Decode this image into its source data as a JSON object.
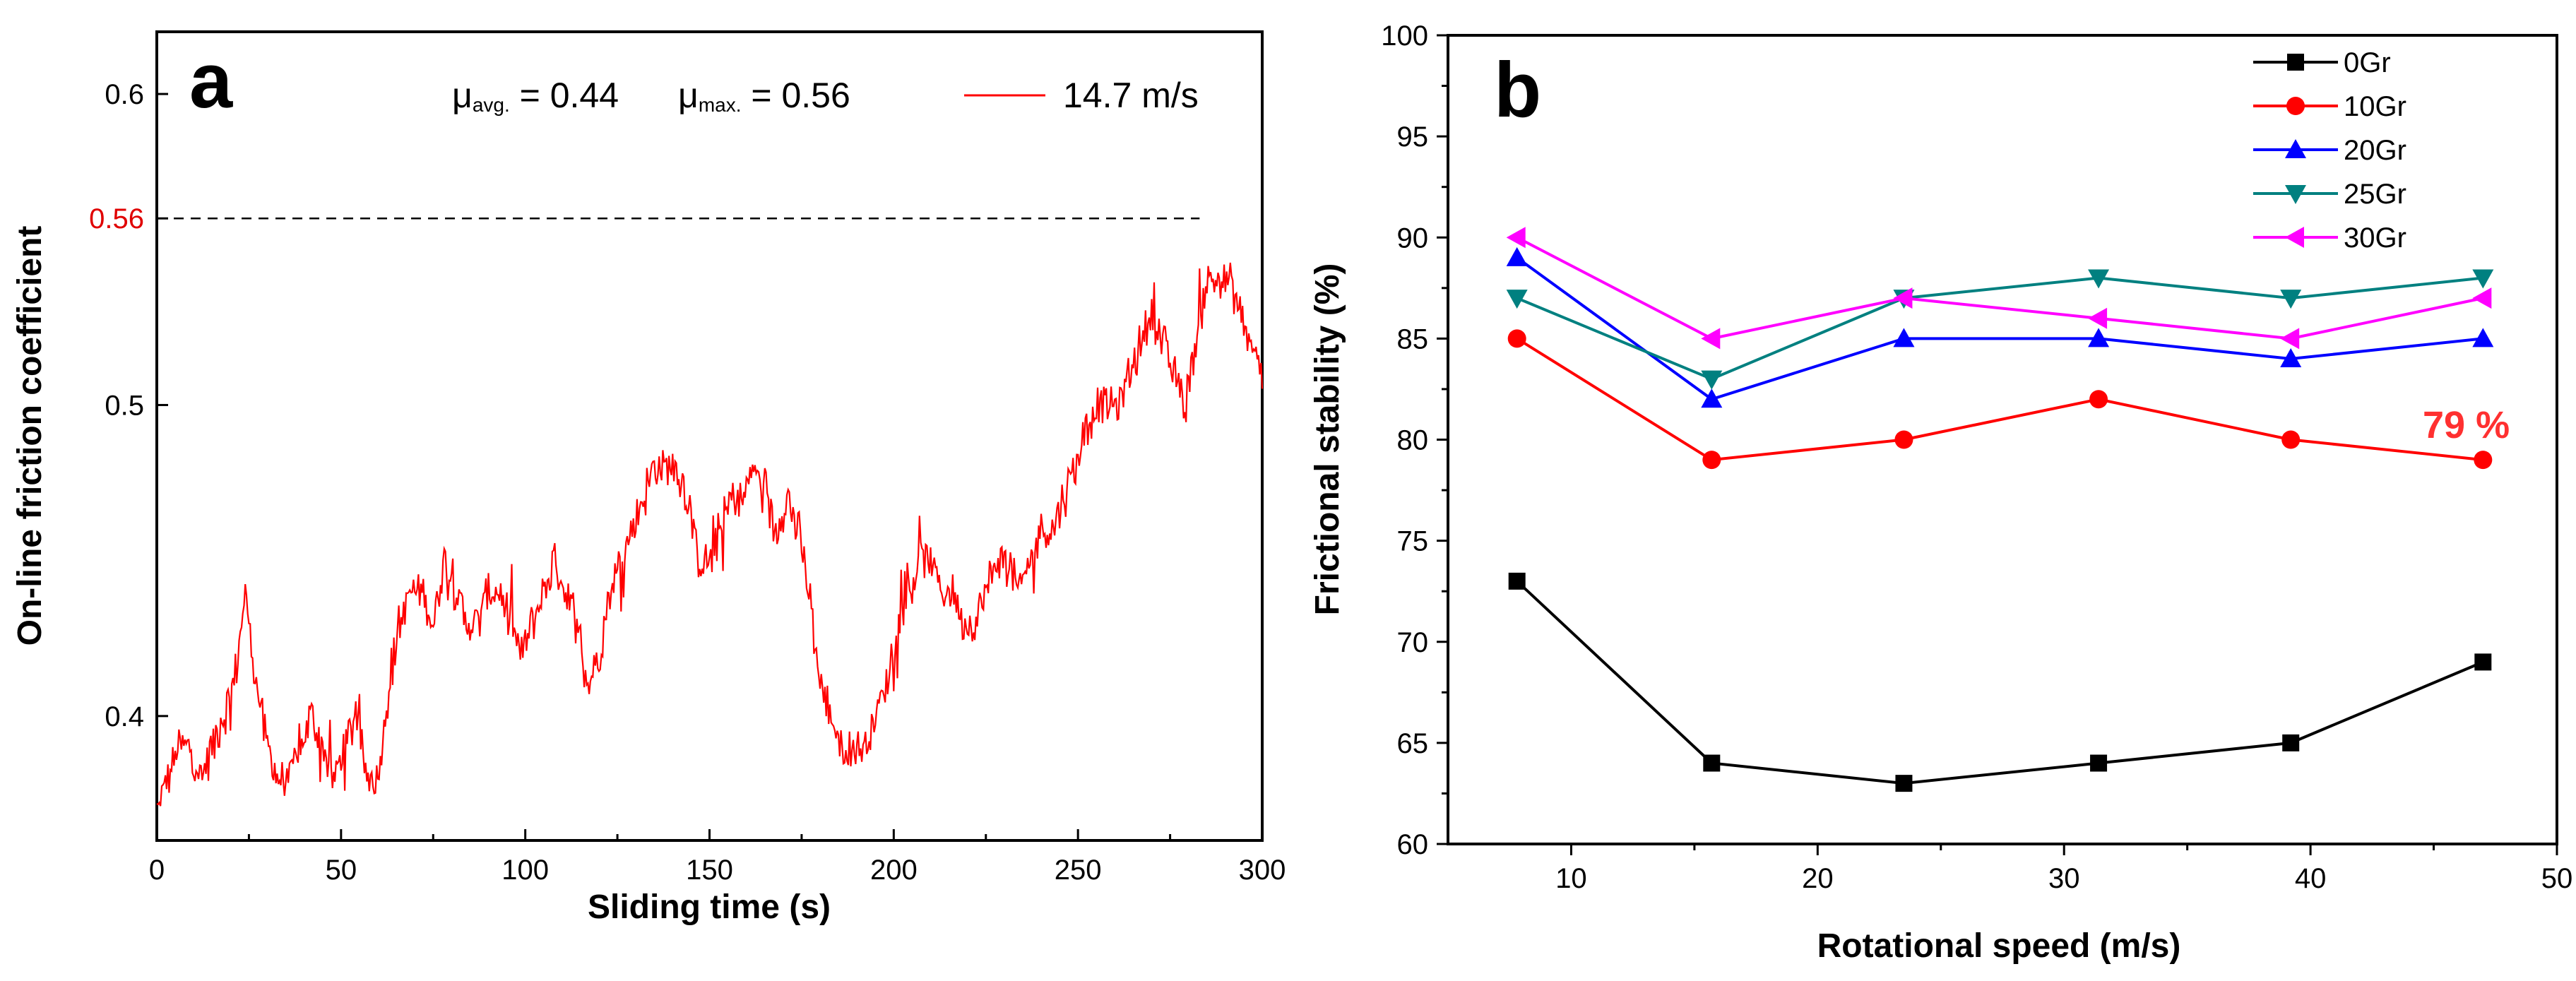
{
  "chart_data": [
    {
      "type": "line",
      "panel_label": "a",
      "title": "",
      "xlabel": "Sliding time (s)",
      "ylabel": "On-line friction coefficient",
      "xlim": [
        0,
        300
      ],
      "ylim": [
        0.36,
        0.62
      ],
      "xticks": [
        "0",
        "50",
        "100",
        "150",
        "200",
        "250",
        "300"
      ],
      "yticks": [
        "0.4",
        "0.5",
        "0.6"
      ],
      "ytick_values": [
        0.4,
        0.5,
        0.6
      ],
      "highlight_tick": {
        "label": "0.56",
        "value": 0.56,
        "color": "#e00000"
      },
      "annotations": {
        "mu_avg": {
          "symbol": "μ",
          "sub": "avg.",
          "text": " = 0.44"
        },
        "mu_max": {
          "symbol": "μ",
          "sub": "max.",
          "text": " = 0.56"
        }
      },
      "series": [
        {
          "name": "14.7 m/s",
          "color": "#ff0000",
          "x": [
            0,
            3,
            6,
            9,
            12,
            15,
            18,
            21,
            24,
            27,
            30,
            33,
            36,
            39,
            42,
            45,
            48,
            51,
            54,
            57,
            60,
            63,
            66,
            69,
            72,
            75,
            78,
            81,
            84,
            87,
            90,
            93,
            96,
            99,
            102,
            105,
            108,
            111,
            114,
            117,
            120,
            123,
            126,
            129,
            132,
            135,
            138,
            141,
            144,
            147,
            150,
            153,
            156,
            159,
            162,
            165,
            168,
            171,
            174,
            177,
            180,
            183,
            186,
            189,
            192,
            195,
            198,
            201,
            204,
            207,
            210,
            213,
            216,
            219,
            222,
            225,
            228,
            231,
            234,
            237,
            240,
            243,
            246,
            249,
            252,
            255,
            258,
            261,
            264,
            267,
            270,
            273,
            276,
            279,
            282,
            285,
            288,
            291,
            294,
            297,
            300
          ],
          "values": [
            0.37,
            0.38,
            0.39,
            0.39,
            0.38,
            0.39,
            0.4,
            0.41,
            0.44,
            0.41,
            0.39,
            0.38,
            0.38,
            0.39,
            0.4,
            0.39,
            0.38,
            0.39,
            0.4,
            0.38,
            0.38,
            0.41,
            0.43,
            0.44,
            0.44,
            0.43,
            0.45,
            0.44,
            0.43,
            0.43,
            0.44,
            0.44,
            0.43,
            0.42,
            0.43,
            0.44,
            0.45,
            0.44,
            0.43,
            0.41,
            0.42,
            0.44,
            0.45,
            0.46,
            0.47,
            0.48,
            0.48,
            0.48,
            0.47,
            0.45,
            0.45,
            0.46,
            0.47,
            0.47,
            0.48,
            0.47,
            0.46,
            0.47,
            0.46,
            0.44,
            0.41,
            0.4,
            0.39,
            0.39,
            0.39,
            0.4,
            0.41,
            0.43,
            0.44,
            0.45,
            0.45,
            0.44,
            0.44,
            0.43,
            0.43,
            0.44,
            0.45,
            0.45,
            0.44,
            0.45,
            0.46,
            0.46,
            0.47,
            0.48,
            0.49,
            0.5,
            0.5,
            0.5,
            0.51,
            0.52,
            0.53,
            0.52,
            0.51,
            0.5,
            0.52,
            0.54,
            0.54,
            0.54,
            0.53,
            0.52,
            0.51
          ]
        }
      ],
      "reference_line": {
        "y": 0.56,
        "x_end": 283,
        "style": "dashed"
      }
    },
    {
      "type": "line",
      "panel_label": "b",
      "title": "",
      "xlabel": "Rotational speed (m/s)",
      "ylabel": "Frictional stability (%)",
      "xlim": [
        5,
        50
      ],
      "ylim": [
        60,
        100
      ],
      "xticks": [
        "10",
        "20",
        "30",
        "40",
        "50"
      ],
      "xtick_values": [
        10,
        20,
        30,
        40,
        50
      ],
      "yticks": [
        "60",
        "65",
        "70",
        "75",
        "80",
        "85",
        "90",
        "95",
        "100"
      ],
      "ytick_values": [
        60,
        65,
        70,
        75,
        80,
        85,
        90,
        95,
        100
      ],
      "x": [
        7.8,
        15.7,
        23.5,
        31.4,
        39.2,
        47.0
      ],
      "legend_position": "top-right",
      "annotation": {
        "text": "79 %",
        "x": 47.0,
        "y": 79,
        "color": "#ff3030"
      },
      "series": [
        {
          "name": "0Gr",
          "color": "#000000",
          "marker": "square",
          "values": [
            73,
            64,
            63,
            64,
            65,
            69
          ]
        },
        {
          "name": "10Gr",
          "color": "#ff0000",
          "marker": "circle",
          "values": [
            85,
            79,
            80,
            82,
            80,
            79
          ]
        },
        {
          "name": "20Gr",
          "color": "#0000ff",
          "marker": "triangle-up",
          "values": [
            89,
            82,
            85,
            85,
            84,
            85
          ]
        },
        {
          "name": "25Gr",
          "color": "#008080",
          "marker": "triangle-down",
          "values": [
            87,
            83,
            87,
            88,
            87,
            88
          ]
        },
        {
          "name": "30Gr",
          "color": "#ff00ff",
          "marker": "triangle-left",
          "values": [
            90,
            85,
            87,
            86,
            85,
            87
          ]
        }
      ]
    }
  ]
}
